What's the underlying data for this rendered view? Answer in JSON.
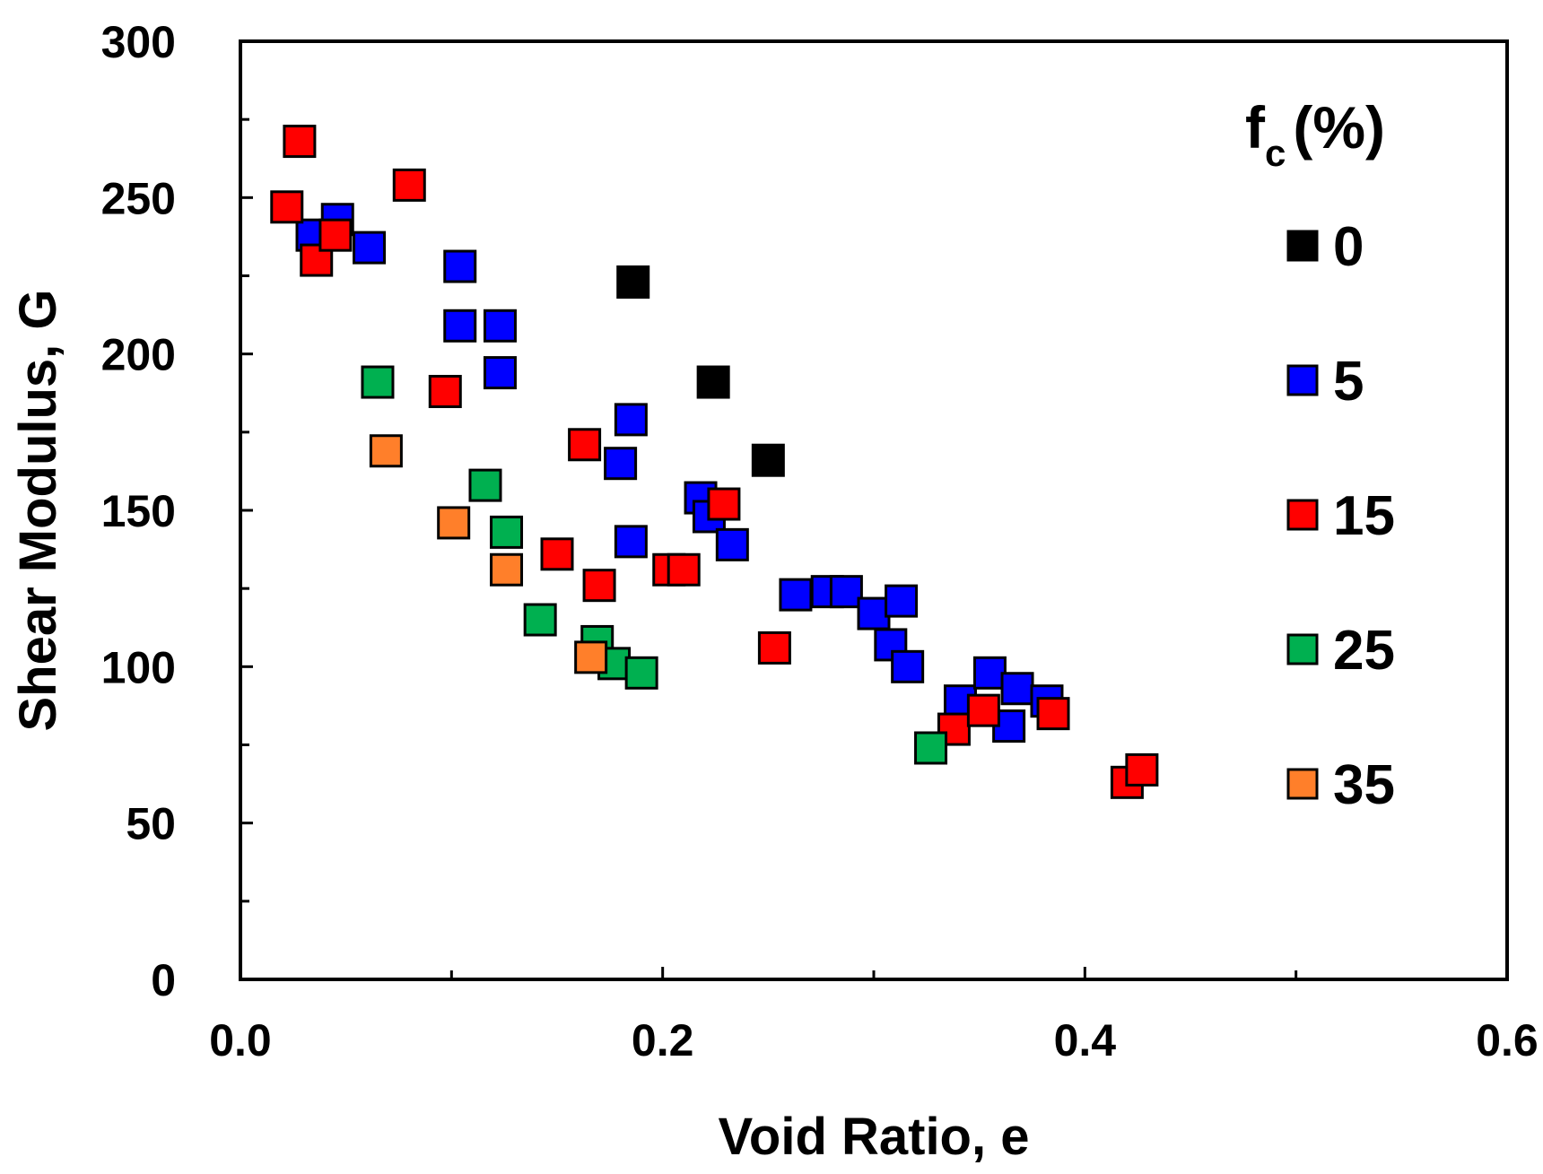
{
  "chart_data": {
    "type": "scatter",
    "title": "",
    "xlabel": "Void Ratio, e",
    "ylabel": "Shear Modulus, G",
    "xlim": [
      0,
      0.6
    ],
    "ylim": [
      0,
      300
    ],
    "xticks": [
      "0.0",
      "0.2",
      "0.4",
      "0.6"
    ],
    "xtick_values": [
      0,
      0.2,
      0.4,
      0.6
    ],
    "yticks": [
      "0",
      "50",
      "100",
      "150",
      "200",
      "250",
      "300"
    ],
    "ytick_values": [
      0,
      50,
      100,
      150,
      200,
      250,
      300
    ],
    "grid": false,
    "legend": {
      "title": "f",
      "title_subscript": "c",
      "title_suffix": "(%)",
      "placement": "right"
    },
    "series": [
      {
        "name": "0",
        "color": "#000000",
        "points": [
          [
            0.186,
            223
          ],
          [
            0.224,
            191
          ],
          [
            0.25,
            166
          ]
        ]
      },
      {
        "name": "5",
        "color": "#0000ff",
        "points": [
          [
            0.034,
            238
          ],
          [
            0.046,
            243
          ],
          [
            0.061,
            234
          ],
          [
            0.104,
            228
          ],
          [
            0.104,
            209
          ],
          [
            0.123,
            209
          ],
          [
            0.123,
            194
          ],
          [
            0.185,
            179
          ],
          [
            0.18,
            165
          ],
          [
            0.185,
            140
          ],
          [
            0.218,
            154
          ],
          [
            0.222,
            148
          ],
          [
            0.233,
            139
          ],
          [
            0.263,
            123
          ],
          [
            0.278,
            124
          ],
          [
            0.287,
            124
          ],
          [
            0.3,
            117
          ],
          [
            0.313,
            121
          ],
          [
            0.308,
            107
          ],
          [
            0.316,
            100
          ],
          [
            0.341,
            89
          ],
          [
            0.355,
            98
          ],
          [
            0.364,
            81
          ],
          [
            0.368,
            93
          ],
          [
            0.382,
            89
          ]
        ]
      },
      {
        "name": "15",
        "color": "#ff0000",
        "points": [
          [
            0.022,
            247
          ],
          [
            0.028,
            268
          ],
          [
            0.036,
            230
          ],
          [
            0.045,
            238
          ],
          [
            0.08,
            254
          ],
          [
            0.097,
            188
          ],
          [
            0.163,
            171
          ],
          [
            0.15,
            136
          ],
          [
            0.17,
            126
          ],
          [
            0.203,
            131
          ],
          [
            0.21,
            131
          ],
          [
            0.229,
            152
          ],
          [
            0.253,
            106
          ],
          [
            0.338,
            80
          ],
          [
            0.352,
            86
          ],
          [
            0.385,
            85
          ],
          [
            0.42,
            63
          ],
          [
            0.427,
            67
          ]
        ]
      },
      {
        "name": "25",
        "color": "#00b050",
        "points": [
          [
            0.065,
            191
          ],
          [
            0.116,
            158
          ],
          [
            0.126,
            143
          ],
          [
            0.142,
            115
          ],
          [
            0.169,
            108
          ],
          [
            0.177,
            101
          ],
          [
            0.19,
            98
          ],
          [
            0.327,
            74
          ]
        ]
      },
      {
        "name": "35",
        "color": "#ff7f2a",
        "points": [
          [
            0.069,
            169
          ],
          [
            0.101,
            146
          ],
          [
            0.126,
            131
          ],
          [
            0.166,
            103
          ]
        ]
      }
    ]
  }
}
